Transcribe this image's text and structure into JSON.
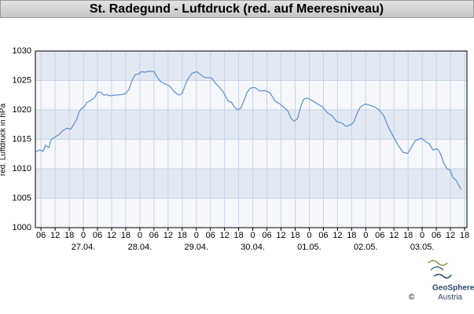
{
  "chart_data": {
    "type": "line",
    "title": "St. Radegund - Luftdruck (red. auf Meeresniveau)",
    "y_label": "red. Luftdruck in hPa",
    "ylim": [
      1000,
      1030
    ],
    "yticks": [
      1000,
      1005,
      1010,
      1015,
      1020,
      1025,
      1030
    ],
    "xlim": [
      -20.4,
      163
    ],
    "xticks": [
      {
        "value": -18,
        "label": "06"
      },
      {
        "value": -12,
        "label": "12"
      },
      {
        "value": -6,
        "label": "18"
      },
      {
        "value": 0,
        "label": "0"
      },
      {
        "value": 6,
        "label": "06"
      },
      {
        "value": 12,
        "label": "12"
      },
      {
        "value": 18,
        "label": "18"
      },
      {
        "value": 24,
        "label": "0"
      },
      {
        "value": 30,
        "label": "06"
      },
      {
        "value": 36,
        "label": "12"
      },
      {
        "value": 42,
        "label": "18"
      },
      {
        "value": 48,
        "label": "0"
      },
      {
        "value": 54,
        "label": "06"
      },
      {
        "value": 60,
        "label": "12"
      },
      {
        "value": 66,
        "label": "18"
      },
      {
        "value": 72,
        "label": "0"
      },
      {
        "value": 78,
        "label": "06"
      },
      {
        "value": 84,
        "label": "12"
      },
      {
        "value": 90,
        "label": "18"
      },
      {
        "value": 96,
        "label": "0"
      },
      {
        "value": 102,
        "label": "06"
      },
      {
        "value": 108,
        "label": "12"
      },
      {
        "value": 114,
        "label": "18"
      },
      {
        "value": 120,
        "label": "0"
      },
      {
        "value": 126,
        "label": "06"
      },
      {
        "value": 132,
        "label": "12"
      },
      {
        "value": 138,
        "label": "18"
      },
      {
        "value": 144,
        "label": "0"
      },
      {
        "value": 150,
        "label": "06"
      },
      {
        "value": 156,
        "label": "12"
      },
      {
        "value": 162,
        "label": "18"
      }
    ],
    "day_labels": [
      {
        "value": 0,
        "label": "27.04."
      },
      {
        "value": 24,
        "label": "28.04."
      },
      {
        "value": 48,
        "label": "29.04."
      },
      {
        "value": 72,
        "label": "30.04."
      },
      {
        "value": 96,
        "label": "01.05."
      },
      {
        "value": 120,
        "label": "02.05."
      },
      {
        "value": 144,
        "label": "03.05."
      }
    ],
    "grid": true,
    "series": [
      {
        "color": "#5b8fd6",
        "x": [
          -20.4,
          -18.7,
          -17.1,
          -16.1,
          -14.7,
          -13.7,
          -10.4,
          -8.7,
          -7.0,
          -5.4,
          -3.7,
          -2.7,
          -2.0,
          -1.0,
          0.3,
          1.3,
          3.0,
          4.7,
          6.0,
          7.4,
          8.7,
          10.0,
          11.4,
          13.0,
          16.4,
          18.1,
          19.4,
          20.7,
          22.1,
          23.4,
          24.7,
          26.4,
          28.1,
          30.1,
          31.4,
          32.8,
          34.8,
          36.8,
          38.8,
          40.8,
          42.1,
          43.5,
          44.8,
          46.1,
          48.2,
          49.8,
          51.5,
          53.5,
          54.8,
          56.2,
          57.5,
          59.5,
          61.5,
          62.9,
          64.2,
          65.5,
          66.9,
          68.2,
          69.6,
          70.9,
          72.9,
          74.9,
          76.9,
          78.9,
          80.3,
          81.6,
          83.6,
          85.6,
          86.9,
          88.3,
          89.6,
          91.0,
          92.3,
          93.6,
          95.0,
          96.3,
          97.6,
          99.6,
          101.7,
          103.7,
          105.7,
          107.7,
          109.7,
          111.7,
          113.7,
          115.0,
          116.4,
          117.7,
          119.7,
          121.7,
          123.7,
          125.7,
          127.7,
          129.7,
          131.7,
          133.8,
          135.8,
          137.8,
          139.1,
          141.1,
          143.8,
          145.8,
          147.1,
          148.5,
          150.5,
          151.8,
          153.1,
          154.5,
          155.8,
          157.1,
          158.5,
          160.5
        ],
        "values": [
          1012.8,
          1013.2,
          1013.0,
          1014.0,
          1013.6,
          1015.0,
          1015.8,
          1016.5,
          1016.9,
          1016.7,
          1017.8,
          1018.5,
          1019.5,
          1020.2,
          1020.5,
          1021.2,
          1021.6,
          1022.0,
          1023.0,
          1023.0,
          1022.5,
          1022.6,
          1022.4,
          1022.5,
          1022.6,
          1022.8,
          1023.5,
          1025.0,
          1026.0,
          1026.1,
          1026.5,
          1026.4,
          1026.6,
          1026.5,
          1025.5,
          1024.8,
          1024.4,
          1024.0,
          1023.0,
          1022.5,
          1022.9,
          1024.5,
          1025.5,
          1026.2,
          1026.5,
          1026.0,
          1025.5,
          1025.5,
          1025.3,
          1024.5,
          1024.0,
          1023.0,
          1021.5,
          1021.3,
          1020.5,
          1020.0,
          1020.3,
          1021.5,
          1023.0,
          1023.7,
          1023.8,
          1023.2,
          1023.3,
          1023.0,
          1022.3,
          1021.5,
          1021.0,
          1020.3,
          1019.8,
          1018.5,
          1018.1,
          1018.5,
          1020.5,
          1021.8,
          1022.0,
          1021.8,
          1021.5,
          1021.0,
          1020.5,
          1019.5,
          1019.0,
          1018.0,
          1017.8,
          1017.2,
          1017.5,
          1018.0,
          1019.5,
          1020.5,
          1021.0,
          1020.8,
          1020.5,
          1020.0,
          1019.0,
          1017.0,
          1015.5,
          1014.0,
          1012.8,
          1012.6,
          1013.5,
          1014.8,
          1015.2,
          1014.5,
          1014.2,
          1013.2,
          1013.4,
          1012.5,
          1011.0,
          1010.0,
          1009.8,
          1008.5,
          1008.0,
          1006.5
        ]
      }
    ]
  },
  "footer": {
    "copyright": "©",
    "brand": "GeoSphere",
    "sub": "Austria"
  }
}
